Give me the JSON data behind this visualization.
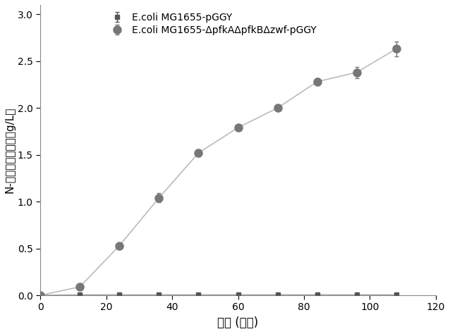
{
  "series1_label": "E.coli MG1655-pGGY",
  "series2_label": "E.coli MG1655-ΔpfkAΔpfkBΔzwf-pGGY",
  "series1_x": [
    0,
    12,
    24,
    36,
    48,
    60,
    72,
    84,
    96,
    108
  ],
  "series1_y": [
    0.0,
    0.005,
    0.005,
    0.005,
    0.005,
    0.005,
    0.005,
    0.005,
    0.005,
    0.005
  ],
  "series1_yerr": [
    0.0,
    0.003,
    0.003,
    0.003,
    0.003,
    0.003,
    0.003,
    0.003,
    0.003,
    0.003
  ],
  "series2_x": [
    0,
    12,
    24,
    36,
    48,
    60,
    72,
    84,
    96,
    108
  ],
  "series2_y": [
    0.0,
    0.09,
    0.53,
    1.04,
    1.52,
    1.79,
    2.0,
    2.28,
    2.38,
    2.63
  ],
  "series2_yerr": [
    0.0,
    0.015,
    0.02,
    0.05,
    0.04,
    0.03,
    0.03,
    0.04,
    0.06,
    0.08
  ],
  "series1_color": "#555555",
  "series1_line_color": "#aaaaaa",
  "series2_color": "#777777",
  "series2_line_color": "#bbbbbb",
  "xlabel": "时间 (小时)",
  "ylabel": "N-乙酰氨基葡萄糖（g/L）",
  "xlim": [
    0,
    120
  ],
  "ylim": [
    0,
    3.1
  ],
  "xticks": [
    0,
    20,
    40,
    60,
    80,
    100,
    120
  ],
  "yticks": [
    0.0,
    0.5,
    1.0,
    1.5,
    2.0,
    2.5,
    3.0
  ],
  "marker1": "s",
  "marker2": "o",
  "markersize1": 5,
  "markersize2": 8,
  "linewidth": 1.2,
  "xlabel_fontsize": 12,
  "ylabel_fontsize": 11,
  "tick_fontsize": 10,
  "legend_fontsize": 10
}
